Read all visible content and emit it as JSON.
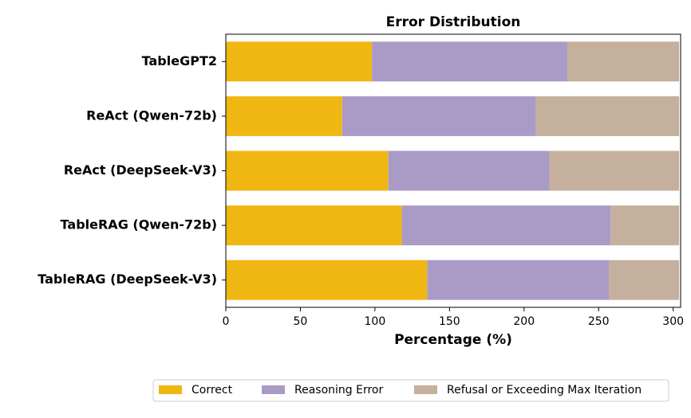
{
  "chart_data": {
    "type": "stacked-bar-horizontal",
    "title": "Error Distribution",
    "x_label": "Percentage (%)",
    "categories": [
      "TableGPT2",
      "ReAct (Qwen-72b)",
      "ReAct (DeepSeek-V3)",
      "TableRAG (Qwen-72b)",
      "TableRAG (DeepSeek-V3)"
    ],
    "series": [
      {
        "name": "Correct",
        "color": "#f0b713",
        "values": [
          98,
          78,
          109,
          118,
          135
        ]
      },
      {
        "name": "Reasoning Error",
        "color": "#aa9bc6",
        "values": [
          131,
          130,
          108,
          140,
          122
        ]
      },
      {
        "name": "Refusal or Exceeding Max Iteration",
        "color": "#c4b09c",
        "values": [
          75,
          96,
          87,
          46,
          47
        ]
      }
    ],
    "xlim": [
      0,
      305
    ],
    "xticks": [
      0,
      50,
      100,
      150,
      200,
      250,
      300
    ],
    "legend": "bottom"
  }
}
